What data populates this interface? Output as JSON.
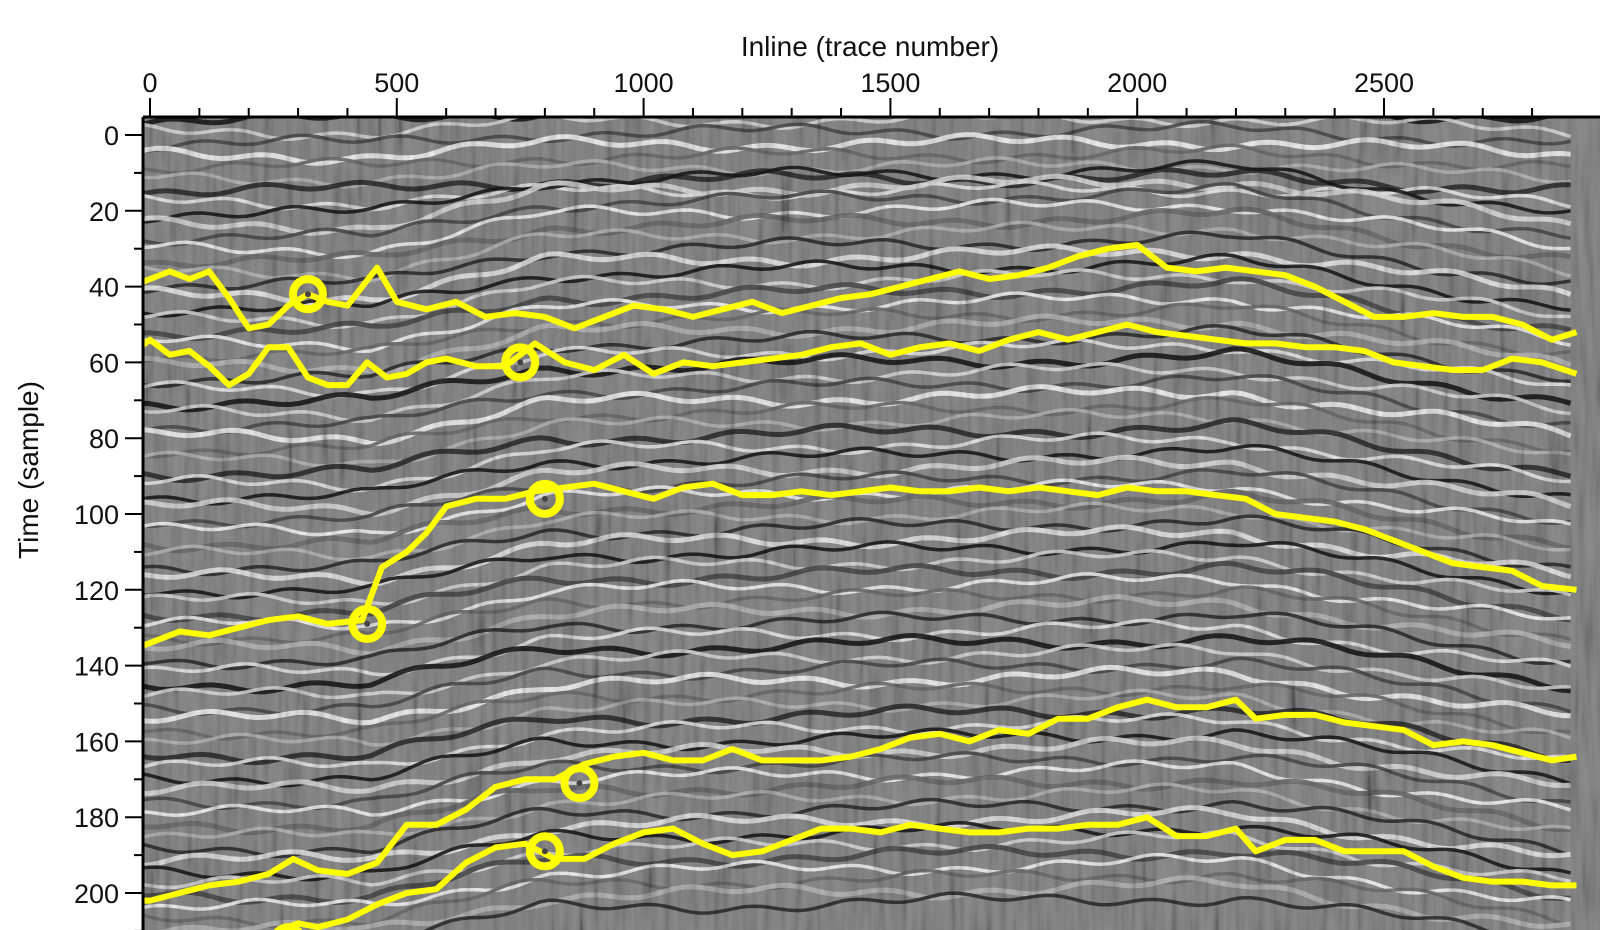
{
  "chart_data": {
    "type": "line",
    "background": "seismic section (grayscale amplitude)",
    "xlabel": "Inline (trace number)",
    "ylabel": "Time (sample)",
    "x_axis_position": "top",
    "xlim": [
      -20,
      2890
    ],
    "ylim": [
      210,
      -5
    ],
    "y_inverted": true,
    "xticks": [
      0,
      500,
      1000,
      1500,
      2000,
      2500
    ],
    "xtick_labels": [
      "0",
      "500",
      "1000",
      "1500",
      "2000",
      "2500"
    ],
    "yticks": [
      0,
      20,
      40,
      60,
      80,
      100,
      120,
      140,
      160,
      180,
      200
    ],
    "ytick_labels": [
      "0",
      "20",
      "40",
      "60",
      "80",
      "100",
      "120",
      "140",
      "160",
      "180",
      "200"
    ],
    "line_color": "#ffff00",
    "grid": false,
    "series": [
      {
        "x": [
          -20,
          0,
          40,
          80,
          120,
          160,
          200,
          240,
          280,
          320,
          360,
          400,
          430,
          460,
          500,
          560,
          620,
          680,
          740,
          800,
          860,
          920,
          980,
          1040,
          1100,
          1160,
          1220,
          1280,
          1340,
          1400,
          1460,
          1520,
          1580,
          1640,
          1700,
          1760,
          1820,
          1880,
          1940,
          2000,
          2060,
          2120,
          2180,
          2240,
          2300,
          2360,
          2420,
          2480,
          2540,
          2600,
          2660,
          2720,
          2780,
          2840,
          2890
        ],
        "y": [
          39,
          38,
          36,
          38,
          36,
          43,
          51,
          50,
          45,
          42,
          44,
          45,
          40,
          35,
          44,
          46,
          44,
          48,
          47,
          48,
          51,
          48,
          45,
          46,
          48,
          46,
          44,
          47,
          45,
          43,
          42,
          40,
          38,
          36,
          38,
          37,
          35,
          32,
          30,
          29,
          35,
          36,
          35,
          36,
          37,
          40,
          44,
          48,
          48,
          47,
          48,
          48,
          50,
          54,
          52
        ]
      },
      {
        "x": [
          -20,
          0,
          40,
          80,
          120,
          160,
          200,
          240,
          280,
          320,
          360,
          400,
          440,
          480,
          520,
          560,
          600,
          660,
          720,
          780,
          840,
          900,
          960,
          1020,
          1080,
          1140,
          1200,
          1260,
          1320,
          1380,
          1440,
          1500,
          1560,
          1620,
          1680,
          1740,
          1800,
          1860,
          1920,
          1980,
          2040,
          2100,
          2160,
          2220,
          2280,
          2340,
          2400,
          2460,
          2520,
          2580,
          2640,
          2700,
          2760,
          2820,
          2890
        ],
        "y": [
          56,
          54,
          58,
          57,
          61,
          66,
          63,
          56,
          56,
          64,
          66,
          66,
          60,
          64,
          63,
          60,
          59,
          61,
          61,
          55,
          60,
          62,
          58,
          63,
          60,
          61,
          60,
          59,
          58,
          56,
          55,
          58,
          56,
          55,
          57,
          54,
          52,
          54,
          52,
          50,
          52,
          53,
          54,
          55,
          55,
          56,
          56,
          57,
          60,
          61,
          62,
          62,
          59,
          60,
          63
        ]
      },
      {
        "x": [
          -20,
          0,
          60,
          120,
          180,
          240,
          300,
          360,
          430,
          470,
          520,
          560,
          600,
          660,
          720,
          780,
          840,
          900,
          960,
          1020,
          1080,
          1140,
          1200,
          1260,
          1320,
          1380,
          1440,
          1500,
          1560,
          1620,
          1680,
          1740,
          1800,
          1860,
          1920,
          1980,
          2040,
          2100,
          2160,
          2220,
          2280,
          2340,
          2400,
          2460,
          2520,
          2580,
          2640,
          2700,
          2760,
          2820,
          2890
        ],
        "y": [
          135,
          134,
          131,
          132,
          130,
          128,
          127,
          129,
          128,
          114,
          110,
          105,
          98,
          96,
          96,
          94,
          93,
          92,
          94,
          96,
          93,
          92,
          95,
          95,
          94,
          95,
          94,
          93,
          94,
          94,
          93,
          94,
          93,
          94,
          95,
          93,
          94,
          94,
          95,
          96,
          100,
          101,
          102,
          104,
          107,
          110,
          113,
          114,
          115,
          119,
          120
        ]
      },
      {
        "x": [
          -20,
          0,
          60,
          120,
          180,
          240,
          290,
          340,
          400,
          460,
          520,
          580,
          640,
          700,
          760,
          820,
          880,
          940,
          1000,
          1060,
          1120,
          1180,
          1240,
          1300,
          1360,
          1420,
          1480,
          1540,
          1600,
          1660,
          1720,
          1780,
          1840,
          1900,
          1960,
          2020,
          2080,
          2140,
          2200,
          2240,
          2300,
          2360,
          2420,
          2480,
          2540,
          2600,
          2660,
          2720,
          2780,
          2840,
          2890
        ],
        "y": [
          202,
          202,
          200,
          198,
          197,
          195,
          191,
          194,
          195,
          192,
          182,
          182,
          178,
          172,
          170,
          170,
          166,
          164,
          163,
          165,
          165,
          162,
          165,
          165,
          165,
          164,
          162,
          159,
          158,
          160,
          157,
          158,
          154,
          154,
          151,
          149,
          151,
          151,
          149,
          154,
          153,
          153,
          155,
          156,
          157,
          161,
          160,
          161,
          163,
          165,
          164
        ]
      },
      {
        "x": [
          230,
          260,
          300,
          340,
          400,
          460,
          520,
          580,
          640,
          700,
          760,
          820,
          880,
          940,
          1000,
          1060,
          1120,
          1180,
          1240,
          1300,
          1360,
          1420,
          1480,
          1540,
          1600,
          1660,
          1720,
          1780,
          1840,
          1900,
          1960,
          2020,
          2080,
          2140,
          2200,
          2240,
          2300,
          2360,
          2420,
          2480,
          2540,
          2600,
          2660,
          2720,
          2780,
          2840,
          2890
        ],
        "y": [
          212,
          210,
          208,
          209,
          207,
          203,
          200,
          199,
          192,
          188,
          187,
          191,
          191,
          187,
          184,
          183,
          187,
          190,
          189,
          186,
          183,
          183,
          184,
          182,
          183,
          184,
          184,
          183,
          183,
          182,
          182,
          180,
          185,
          185,
          183,
          189,
          186,
          186,
          189,
          189,
          189,
          193,
          196,
          197,
          197,
          198,
          198
        ]
      }
    ],
    "markers": [
      {
        "x": 320,
        "y": 42
      },
      {
        "x": 750,
        "y": 60
      },
      {
        "x": 800,
        "y": 96
      },
      {
        "x": 440,
        "y": 129
      },
      {
        "x": 870,
        "y": 171
      },
      {
        "x": 800,
        "y": 189
      },
      {
        "x": 280,
        "y": 213
      }
    ]
  }
}
